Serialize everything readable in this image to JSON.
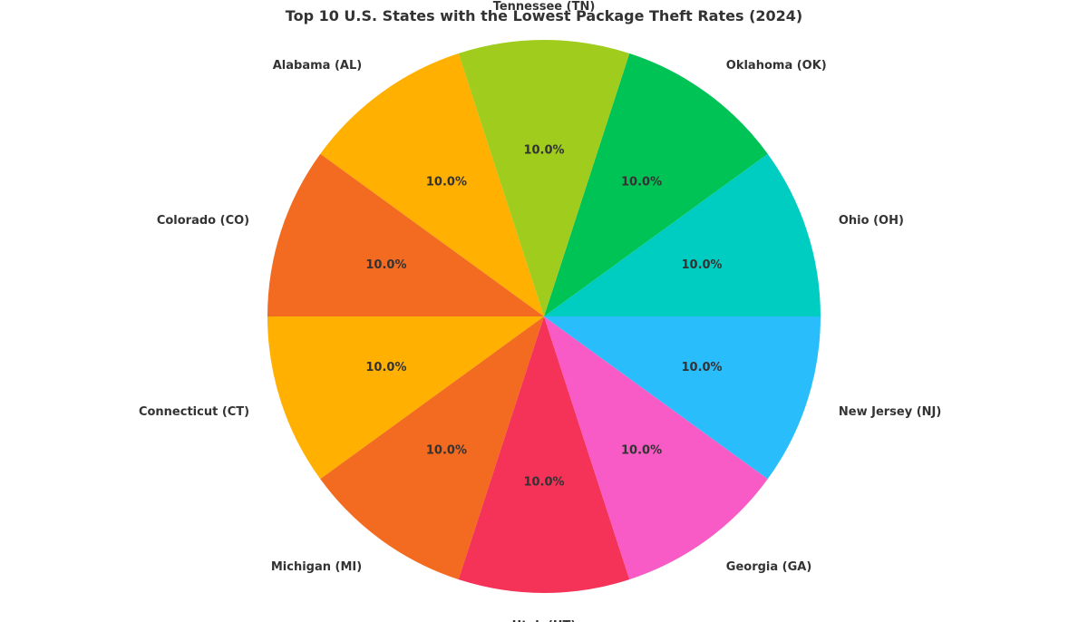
{
  "chart_data": {
    "type": "pie",
    "title": "Top 10 U.S. States with the Lowest Package Theft Rates (2024)",
    "start_angle_deg": 108,
    "direction": "counterclockwise",
    "slices": [
      {
        "label": "Alabama (AL)",
        "value": 10.0,
        "pct_label": "10.0%",
        "color": "#FFB000"
      },
      {
        "label": "Colorado (CO)",
        "value": 10.0,
        "pct_label": "10.0%",
        "color": "#F26B21"
      },
      {
        "label": "Connecticut (CT)",
        "value": 10.0,
        "pct_label": "10.0%",
        "color": "#FFB000"
      },
      {
        "label": "Michigan (MI)",
        "value": 10.0,
        "pct_label": "10.0%",
        "color": "#F26B21"
      },
      {
        "label": "Utah (UT)",
        "value": 10.0,
        "pct_label": "10.0%",
        "color": "#F53358"
      },
      {
        "label": "Georgia (GA)",
        "value": 10.0,
        "pct_label": "10.0%",
        "color": "#F85BC5"
      },
      {
        "label": "New Jersey (NJ)",
        "value": 10.0,
        "pct_label": "10.0%",
        "color": "#2ABDFB"
      },
      {
        "label": "Ohio (OH)",
        "value": 10.0,
        "pct_label": "10.0%",
        "color": "#00CDC2"
      },
      {
        "label": "Oklahoma (OK)",
        "value": 10.0,
        "pct_label": "10.0%",
        "color": "#00C355"
      },
      {
        "label": "Tennessee (TN)",
        "value": 10.0,
        "pct_label": "10.0%",
        "color": "#A0CC1E"
      }
    ]
  }
}
